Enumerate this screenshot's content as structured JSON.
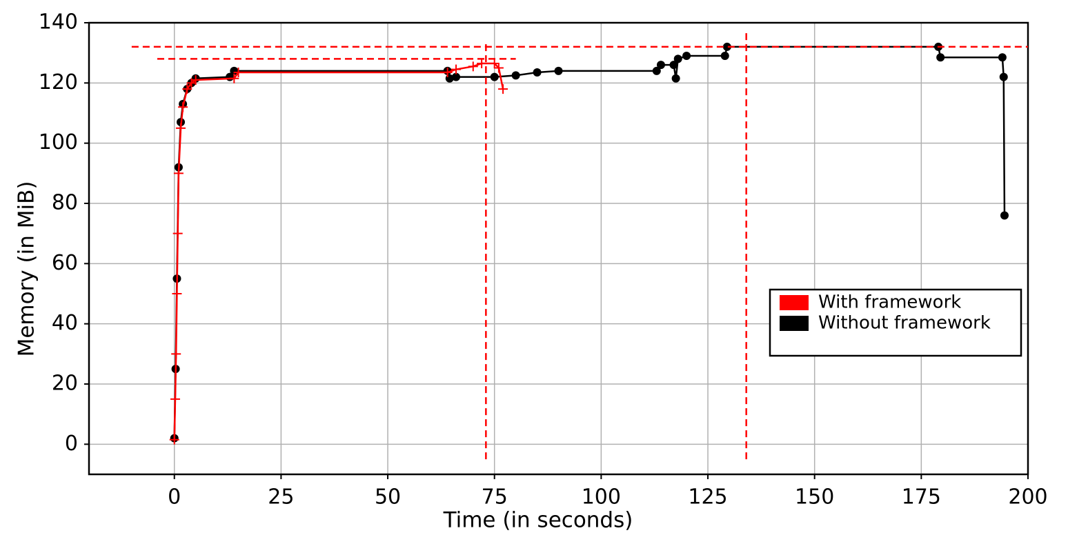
{
  "chart_data": {
    "type": "line",
    "xlabel": "Time (in seconds)",
    "ylabel": "Memory (in MiB)",
    "xlim": [
      -20,
      200
    ],
    "ylim": [
      -10,
      140
    ],
    "xticks": [
      0,
      25,
      50,
      75,
      100,
      125,
      150,
      175,
      200
    ],
    "yticks": [
      0,
      20,
      40,
      60,
      80,
      100,
      120,
      140
    ],
    "grid": true,
    "legend_loc": "lower right",
    "series": [
      {
        "name": "With framework",
        "color": "#ff0000",
        "marker": "plus",
        "x": [
          0,
          0.2,
          0.4,
          0.6,
          0.8,
          1,
          1.5,
          2,
          3,
          4,
          5,
          14,
          15,
          64,
          66,
          70,
          72,
          75,
          76,
          77
        ],
        "values": [
          1.5,
          15,
          30,
          50,
          70,
          90,
          105,
          112,
          118,
          120,
          121,
          121.5,
          123.5,
          123.5,
          124.5,
          125.5,
          126.5,
          126.5,
          125,
          118
        ]
      },
      {
        "name": "Without framework",
        "color": "#000000",
        "marker": "circle",
        "x": [
          0,
          0.3,
          0.6,
          1,
          1.5,
          2,
          3,
          4,
          5,
          13,
          14,
          64,
          64.5,
          66,
          75,
          80,
          85,
          90,
          113,
          114,
          117,
          117.5,
          118,
          120,
          129,
          129.5,
          179,
          179.5,
          194,
          194.3,
          194.5
        ],
        "values": [
          2,
          25,
          55,
          92,
          107,
          113,
          118,
          120,
          121.5,
          122,
          124,
          124,
          121.5,
          122,
          122,
          122.5,
          123.5,
          124,
          124,
          126,
          126,
          121.5,
          128,
          129,
          129,
          132,
          132,
          128.5,
          128.5,
          122,
          76
        ]
      }
    ],
    "hlines": [
      {
        "y": 132,
        "xmin": -10,
        "xmax": 200,
        "color": "#ff0000"
      },
      {
        "y": 128,
        "xmin": -4,
        "xmax": 80,
        "color": "#ff0000"
      }
    ],
    "vlines": [
      {
        "x": 73,
        "ymin": -5,
        "ymax": 134,
        "color": "#ff0000"
      },
      {
        "x": 134,
        "ymin": -5,
        "ymax": 137,
        "color": "#ff0000"
      }
    ]
  }
}
